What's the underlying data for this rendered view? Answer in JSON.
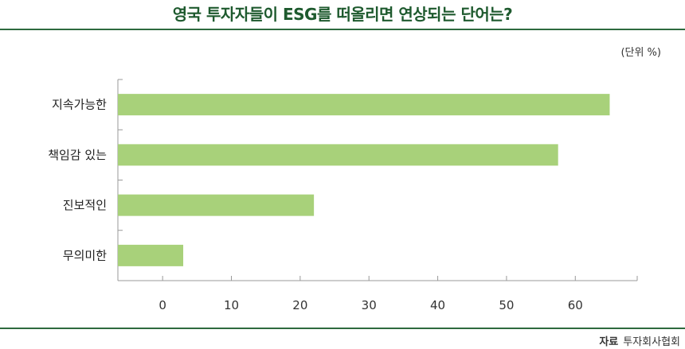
{
  "header": {
    "title": "영국 투자자들이 ESG를 떠올리면 연상되는 단어는?"
  },
  "unit_label": "(단위 %)",
  "source": {
    "label": "자료",
    "text": "투자회사협회"
  },
  "colors": {
    "bar": "#a8d17a",
    "rule": "#2d6a3e",
    "title": "#1e5a2e",
    "axis": "#999999"
  },
  "chart_data": {
    "type": "bar",
    "orientation": "horizontal",
    "title": "영국 투자자들이 ESG를 떠올리면 연상되는 단어는?",
    "categories": [
      "지속가능한",
      "책임감 있는",
      "진보적인",
      "무의미한"
    ],
    "values": [
      65,
      57.5,
      22,
      3
    ],
    "xlim": [
      -6.5,
      69
    ],
    "xticks": [
      0,
      10,
      20,
      30,
      40,
      50,
      60
    ],
    "xlabel": "",
    "ylabel": "",
    "unit": "%",
    "grid": false,
    "legend": "none"
  }
}
